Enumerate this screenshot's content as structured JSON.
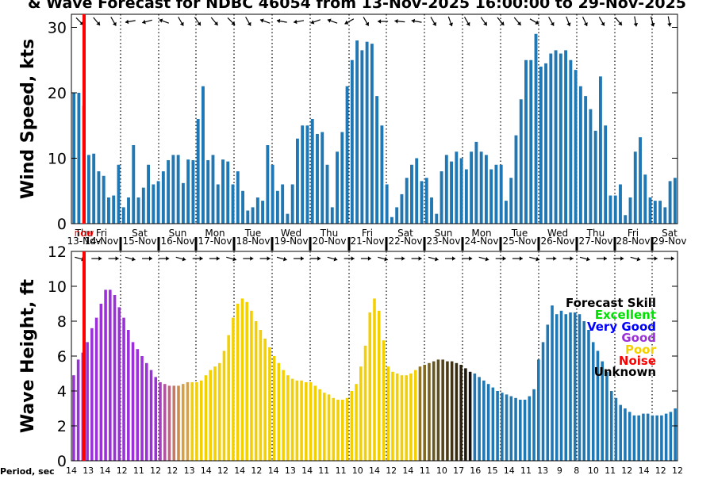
{
  "title": "& Wave Forecast for NDBC 46054 from 13-Nov-2025 16:00:00 to 29-Nov-2025",
  "now_label": "now",
  "colors": {
    "excellent": "#00e000",
    "very_good": "#0000ff",
    "good": "#9b30d9",
    "poor": "#f5d000",
    "noise": "#ff0000",
    "unknown": "#000000",
    "bar_blue": "#1f77b4",
    "now_line": "#ff0000"
  },
  "day_labels": [
    {
      "day": "Thu",
      "date": "13-Nov"
    },
    {
      "day": "Fri",
      "date": "14-Nov"
    },
    {
      "day": "Sat",
      "date": "15-Nov"
    },
    {
      "day": "Sun",
      "date": "16-Nov"
    },
    {
      "day": "Mon",
      "date": "17-Nov"
    },
    {
      "day": "Tue",
      "date": "18-Nov"
    },
    {
      "day": "Wed",
      "date": "19-Nov"
    },
    {
      "day": "Thu",
      "date": "20-Nov"
    },
    {
      "day": "Fri",
      "date": "21-Nov"
    },
    {
      "day": "Sat",
      "date": "22-Nov"
    },
    {
      "day": "Sun",
      "date": "23-Nov"
    },
    {
      "day": "Mon",
      "date": "24-Nov"
    },
    {
      "day": "Tue",
      "date": "25-Nov"
    },
    {
      "day": "Wed",
      "date": "26-Nov"
    },
    {
      "day": "Thu",
      "date": "27-Nov"
    },
    {
      "day": "Fri",
      "date": "28-Nov"
    },
    {
      "day": "Sat",
      "date": "29-Nov"
    }
  ],
  "legend": {
    "title": "Forecast Skill",
    "items": [
      {
        "label": "Excellent",
        "color": "#00e000"
      },
      {
        "label": "Very Good",
        "color": "#0000ff"
      },
      {
        "label": "Good",
        "color": "#9b30d9"
      },
      {
        "label": "Poor",
        "color": "#f5d000"
      },
      {
        "label": "Noise",
        "color": "#ff0000"
      },
      {
        "label": "Unknown",
        "color": "#000000"
      }
    ]
  },
  "period": {
    "label": "Period, sec",
    "values": [
      "14",
      "13",
      "14",
      "12",
      "11",
      "12",
      "12",
      "13",
      "14",
      "12",
      "14",
      "12",
      "14",
      "13",
      "14",
      "11",
      "11",
      "10",
      "14",
      "12",
      "14",
      "11",
      "10",
      "17",
      "16",
      "15",
      "14",
      "11",
      "13",
      "9",
      "8",
      "10",
      "11",
      "12",
      "14",
      "12",
      "12"
    ]
  },
  "chart_data": [
    {
      "type": "bar",
      "name": "wind",
      "ylabel": "Wind Speed, kts",
      "ylim": [
        0,
        32
      ],
      "yticks": [
        0,
        10,
        20,
        30
      ],
      "grid": "vertical dotted lines at day boundaries",
      "values": [
        20,
        20,
        18,
        10.5,
        10.7,
        8,
        7.3,
        4,
        4.3,
        9,
        2.5,
        4,
        12,
        4,
        5.5,
        9,
        6,
        6.5,
        8,
        9.7,
        10.5,
        10.5,
        6.2,
        9.8,
        9.7,
        16,
        21,
        9.7,
        10.5,
        6,
        9.8,
        9.5,
        6,
        8,
        5,
        2,
        2.5,
        4,
        3.5,
        12,
        9,
        5,
        6,
        1.5,
        6,
        13,
        15,
        15,
        16,
        13.7,
        14,
        9,
        2.5,
        11,
        14,
        21,
        25,
        28,
        26.5,
        27.8,
        27.5,
        19.5,
        15,
        6,
        1,
        2.5,
        4.5,
        7,
        9,
        10,
        6.5,
        7,
        4,
        1.5,
        8,
        10.5,
        9.5,
        11,
        10,
        8.3,
        11,
        12.5,
        11,
        10.5,
        8.3,
        9,
        9,
        3.5,
        7,
        13.5,
        19,
        25,
        25,
        29,
        24,
        24.5,
        26,
        26.5,
        26,
        26.5,
        25,
        23.5,
        21,
        19.5,
        17.5,
        14.2,
        22.5,
        15,
        4.3,
        4.3,
        6,
        1.3,
        4,
        11,
        13.2,
        7.5,
        4,
        3.5,
        3.5,
        2.5,
        6.5,
        7
      ]
    },
    {
      "type": "bar",
      "name": "wave",
      "ylabel": "Wave Height, ft",
      "ylim": [
        0,
        12
      ],
      "yticks": [
        0,
        2,
        4,
        6,
        8,
        10,
        12
      ],
      "values": [
        4.9,
        5.8,
        6.2,
        6.8,
        7.6,
        8.2,
        9.0,
        9.8,
        9.8,
        9.5,
        8.8,
        8.2,
        7.5,
        6.8,
        6.4,
        6.0,
        5.6,
        5.2,
        4.8,
        4.5,
        4.4,
        4.3,
        4.3,
        4.3,
        4.4,
        4.5,
        4.5,
        4.5,
        4.6,
        4.9,
        5.2,
        5.4,
        5.6,
        6.3,
        7.2,
        8.2,
        9.0,
        9.3,
        9.1,
        8.6,
        8.0,
        7.5,
        7.0,
        6.5,
        6.0,
        5.6,
        5.2,
        4.9,
        4.7,
        4.6,
        4.6,
        4.5,
        4.5,
        4.3,
        4.1,
        3.9,
        3.8,
        3.6,
        3.5,
        3.5,
        3.6,
        4.0,
        4.4,
        5.4,
        6.6,
        8.5,
        9.3,
        8.6,
        6.9,
        5.4,
        5.1,
        5.0,
        4.9,
        4.9,
        5.0,
        5.2,
        5.4,
        5.5,
        5.6,
        5.7,
        5.8,
        5.8,
        5.7,
        5.7,
        5.6,
        5.5,
        5.3,
        5.1,
        5.0,
        4.8,
        4.6,
        4.4,
        4.2,
        4.0,
        3.9,
        3.8,
        3.7,
        3.6,
        3.5,
        3.5,
        3.7,
        4.1,
        5.8,
        6.8,
        7.8,
        8.9,
        8.4,
        8.6,
        8.4,
        8.5,
        8.5,
        8.4,
        8.0,
        7.5,
        6.8,
        6.3,
        5.7,
        5.1,
        4.0,
        3.6,
        3.2,
        3.0,
        2.8,
        2.6,
        2.6,
        2.7,
        2.7,
        2.6,
        2.6,
        2.6,
        2.7,
        2.8,
        3.0
      ],
      "segments": [
        {
          "from": 0,
          "to": 23,
          "skill": "Good"
        },
        {
          "from": 24,
          "to": 25,
          "skill": "Poor"
        },
        {
          "from": 26,
          "to": 47,
          "skill": "Poor"
        },
        {
          "from": 48,
          "to": 75,
          "skill": "Poor"
        },
        {
          "from": 76,
          "to": 87,
          "skill": "Unknown"
        },
        {
          "from": 88,
          "to": 131,
          "skill": "Very Good"
        }
      ]
    }
  ]
}
